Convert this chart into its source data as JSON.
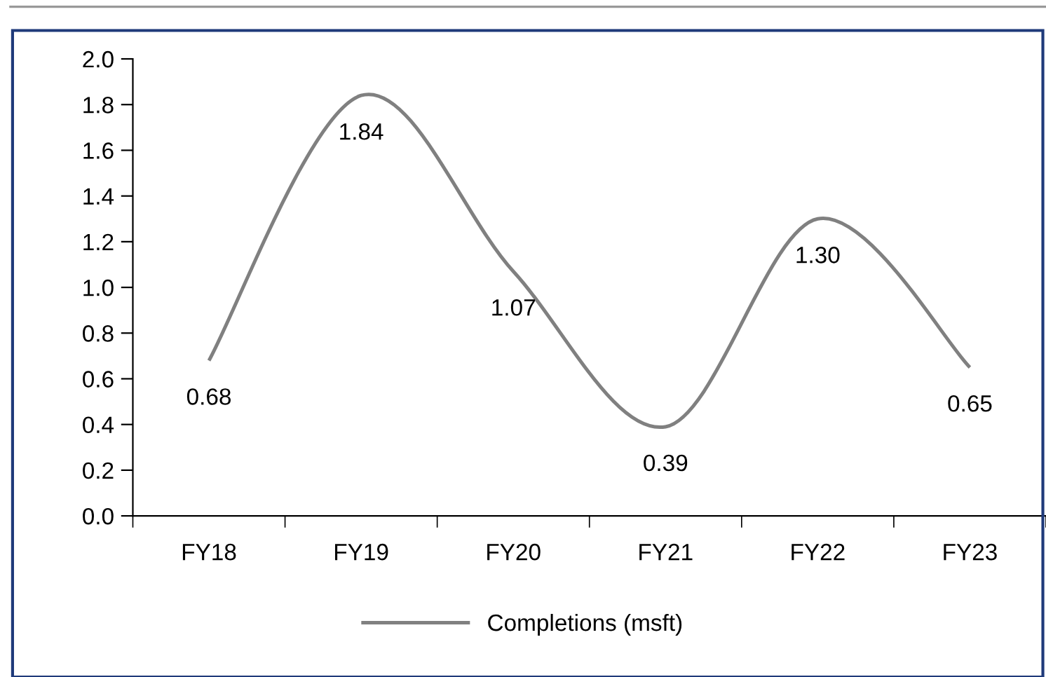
{
  "chart_data": {
    "type": "line",
    "categories": [
      "FY18",
      "FY19",
      "FY20",
      "FY21",
      "FY22",
      "FY23"
    ],
    "series": [
      {
        "name": "Completions (msft)",
        "color": "#808080",
        "values": [
          0.68,
          1.84,
          1.07,
          0.39,
          1.3,
          0.65
        ],
        "value_labels": [
          "0.68",
          "1.84",
          "1.07",
          "0.39",
          "1.30",
          "0.65"
        ]
      }
    ],
    "ylim": [
      0,
      2.0
    ],
    "yticks": [
      {
        "value": 0,
        "label": "0.0"
      },
      {
        "value": 0.2,
        "label": "0.2"
      },
      {
        "value": 0.4,
        "label": "0.4"
      },
      {
        "value": 0.6,
        "label": "0.6"
      },
      {
        "value": 0.8,
        "label": "0.8"
      },
      {
        "value": 1.0,
        "label": "1.0"
      },
      {
        "value": 1.2,
        "label": "1.2"
      },
      {
        "value": 1.4,
        "label": "1.4"
      },
      {
        "value": 1.6,
        "label": "1.6"
      },
      {
        "value": 1.8,
        "label": "1.8"
      },
      {
        "value": 2.0,
        "label": "2.0"
      }
    ],
    "legend": "bottom",
    "grid": false,
    "marker": "none",
    "line_style": "solid"
  }
}
